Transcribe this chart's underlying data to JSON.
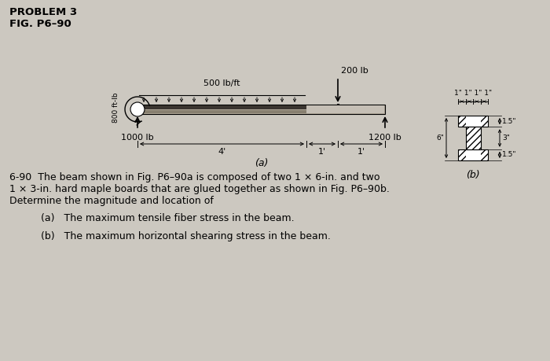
{
  "title1": "PROBLEM 3",
  "title2": "FIG. P6–90",
  "bg_color": "#ccc8c0",
  "beam_label_a": "(a)",
  "beam_label_b": "(b)",
  "dist_load": "500 lb/ft",
  "moment": "800 ft-lb",
  "reaction_left": "1000 lb",
  "reaction_right": "1200 lb",
  "point_load": "200 lb",
  "dim_4ft": "4'",
  "dim_1ft_left": "1'",
  "dim_1ft_right": "1'",
  "dim_15_top": "1.5\"",
  "dim_3": "3\"",
  "dim_15_bot": "1.5\"",
  "dim_6": "6\"",
  "dim_top_labels": "1\" 1\" 1\" 1\"",
  "text_body1": "6-90  The beam shown in Fig. P6–90a is composed of two 1 × 6-in. and two",
  "text_body2": "1 × 3-in. hard maple boards that are glued together as shown in Fig. P6–90b.",
  "text_body3": "Determine the magnitude and location of",
  "text_a": "(a)   The maximum tensile fiber stress in the beam.",
  "text_b": "(b)   The maximum horizontal shearing stress in the beam."
}
